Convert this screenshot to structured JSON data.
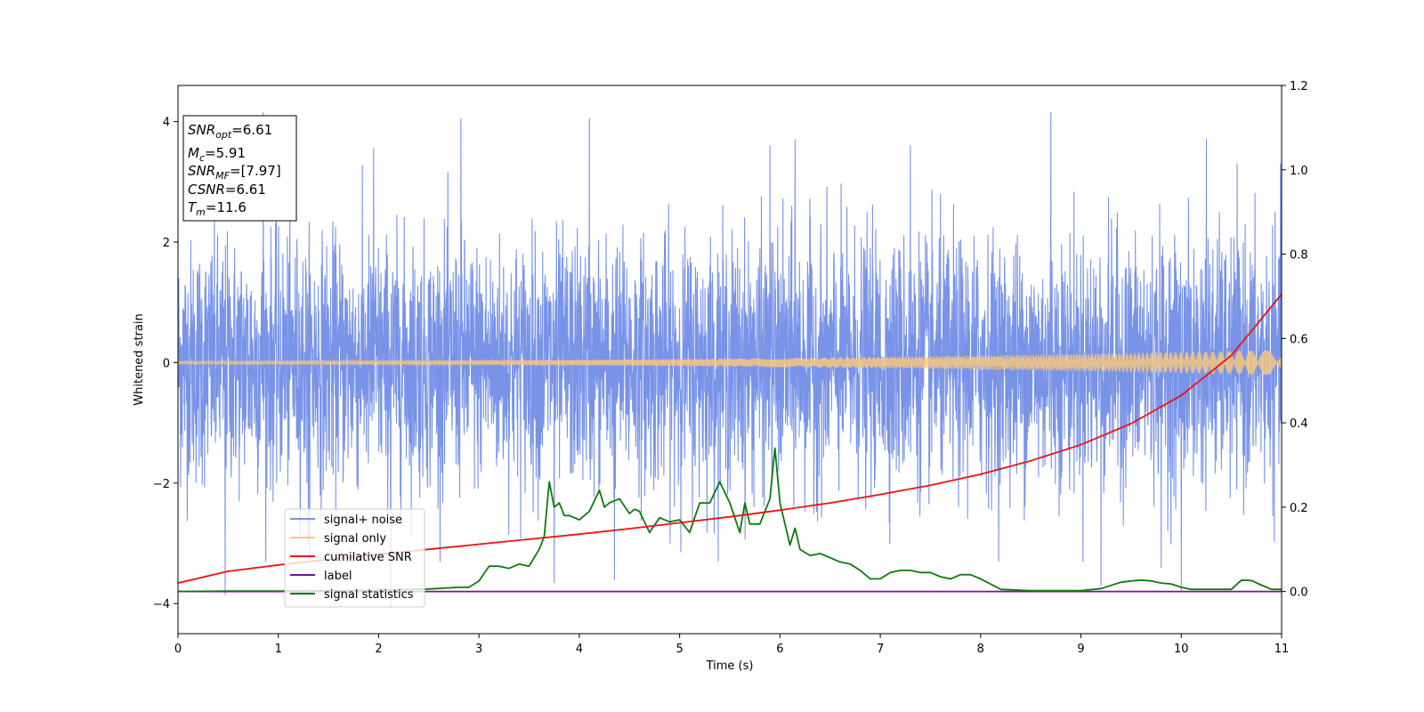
{
  "chart_data": {
    "type": "line",
    "xlabel": "Time (s)",
    "ylabel": "Whitened strain",
    "xlim": [
      0,
      11
    ],
    "ylim": [
      -4.5,
      4.6
    ],
    "y2lim": [
      -0.1,
      1.2
    ],
    "x_ticks": [
      0,
      1,
      2,
      3,
      4,
      5,
      6,
      7,
      8,
      9,
      10,
      11
    ],
    "y_ticks": [
      -4,
      -2,
      0,
      2,
      4
    ],
    "y_tick_labels": [
      "−4",
      "−2",
      "0",
      "2",
      "4"
    ],
    "y2_ticks": [
      0.0,
      0.2,
      0.4,
      0.6,
      0.8,
      1.0,
      1.2
    ],
    "y2_tick_labels": [
      "0.0",
      "0.2",
      "0.4",
      "0.6",
      "0.8",
      "1.0",
      "1.2"
    ],
    "grid": false,
    "legend_position": "bottom-left",
    "annotation": {
      "snr_opt": {
        "symbol": "SNR",
        "sub": "opt",
        "value": "=6.61"
      },
      "mc": {
        "symbol": "M",
        "sub": "c",
        "value": "=5.91"
      },
      "snr_mf": {
        "symbol": "SNR",
        "sub": "MF",
        "value": "=[7.97]"
      },
      "csnr": {
        "symbol": "CSNR",
        "sub": "",
        "value": "=6.61"
      },
      "tm": {
        "symbol": "T",
        "sub": "m",
        "value": "=11.6"
      }
    },
    "series": [
      {
        "name": "signal+ noise",
        "color": "#7893e8",
        "axis": "left",
        "kind": "noise",
        "std": 1.0,
        "peaks": [
          [
            0.85,
            4.15
          ],
          [
            2.82,
            4.05
          ],
          [
            3.75,
            -3.65
          ],
          [
            4.1,
            4.05
          ],
          [
            4.35,
            -3.6
          ],
          [
            8.7,
            4.15
          ],
          [
            9.2,
            -3.7
          ],
          [
            10.0,
            -3.8
          ],
          [
            2.12,
            -4.05
          ],
          [
            0.47,
            -3.85
          ],
          [
            1.95,
            3.55
          ],
          [
            6.15,
            3.7
          ],
          [
            5.9,
            3.6
          ],
          [
            10.25,
            3.7
          ],
          [
            7.3,
            3.6
          ],
          [
            1.3,
            -3.0
          ],
          [
            9.8,
            -3.4
          ]
        ]
      },
      {
        "name": "signal only",
        "color": "#f6c780",
        "axis": "left",
        "kind": "chirp",
        "amp_start": 0.025,
        "amp_end": 0.21
      },
      {
        "name": "cumilative SNR",
        "color": "#ee1111",
        "axis": "right",
        "x": [
          0,
          0.5,
          1,
          1.5,
          2,
          2.5,
          3,
          3.5,
          4,
          4.5,
          5,
          5.5,
          6,
          6.5,
          7,
          7.5,
          8,
          8.5,
          9,
          9.5,
          10,
          10.5,
          11
        ],
        "values": [
          0.02,
          0.048,
          0.063,
          0.076,
          0.088,
          0.1,
          0.112,
          0.124,
          0.136,
          0.149,
          0.163,
          0.177,
          0.193,
          0.21,
          0.23,
          0.252,
          0.278,
          0.31,
          0.348,
          0.398,
          0.465,
          0.56,
          0.705
        ]
      },
      {
        "name": "label",
        "color": "#7b0f9a",
        "axis": "right",
        "x": [
          0,
          11
        ],
        "values": [
          0.0,
          0.0
        ]
      },
      {
        "name": "signal statistics",
        "color": "#0d7a0d",
        "axis": "right",
        "x": [
          0,
          0.5,
          1,
          1.5,
          2,
          2.5,
          2.8,
          2.9,
          3.0,
          3.1,
          3.2,
          3.3,
          3.4,
          3.5,
          3.6,
          3.65,
          3.7,
          3.75,
          3.8,
          3.85,
          3.9,
          4.0,
          4.1,
          4.2,
          4.25,
          4.3,
          4.4,
          4.5,
          4.55,
          4.6,
          4.7,
          4.8,
          4.9,
          5.0,
          5.1,
          5.2,
          5.3,
          5.4,
          5.5,
          5.6,
          5.65,
          5.7,
          5.8,
          5.9,
          5.95,
          6.0,
          6.1,
          6.15,
          6.2,
          6.3,
          6.4,
          6.5,
          6.6,
          6.7,
          6.8,
          6.9,
          7.0,
          7.1,
          7.2,
          7.3,
          7.4,
          7.5,
          7.6,
          7.7,
          7.8,
          7.9,
          8.0,
          8.2,
          8.5,
          8.8,
          9.0,
          9.2,
          9.4,
          9.5,
          9.6,
          9.7,
          9.8,
          9.9,
          10.0,
          10.1,
          10.3,
          10.5,
          10.6,
          10.7,
          10.8,
          10.9,
          11.0
        ],
        "values": [
          0.0,
          0.001,
          0.001,
          0.002,
          0.003,
          0.006,
          0.01,
          0.01,
          0.025,
          0.06,
          0.06,
          0.055,
          0.065,
          0.06,
          0.1,
          0.13,
          0.26,
          0.2,
          0.21,
          0.18,
          0.18,
          0.17,
          0.19,
          0.24,
          0.2,
          0.21,
          0.22,
          0.185,
          0.195,
          0.19,
          0.14,
          0.175,
          0.165,
          0.17,
          0.14,
          0.21,
          0.21,
          0.26,
          0.21,
          0.14,
          0.21,
          0.16,
          0.16,
          0.22,
          0.34,
          0.21,
          0.11,
          0.15,
          0.1,
          0.085,
          0.09,
          0.08,
          0.07,
          0.065,
          0.05,
          0.03,
          0.03,
          0.045,
          0.05,
          0.05,
          0.045,
          0.045,
          0.035,
          0.03,
          0.04,
          0.04,
          0.03,
          0.005,
          0.002,
          0.002,
          0.002,
          0.007,
          0.022,
          0.025,
          0.027,
          0.025,
          0.02,
          0.018,
          0.01,
          0.005,
          0.005,
          0.005,
          0.027,
          0.026,
          0.015,
          0.005,
          0.005
        ]
      }
    ]
  }
}
